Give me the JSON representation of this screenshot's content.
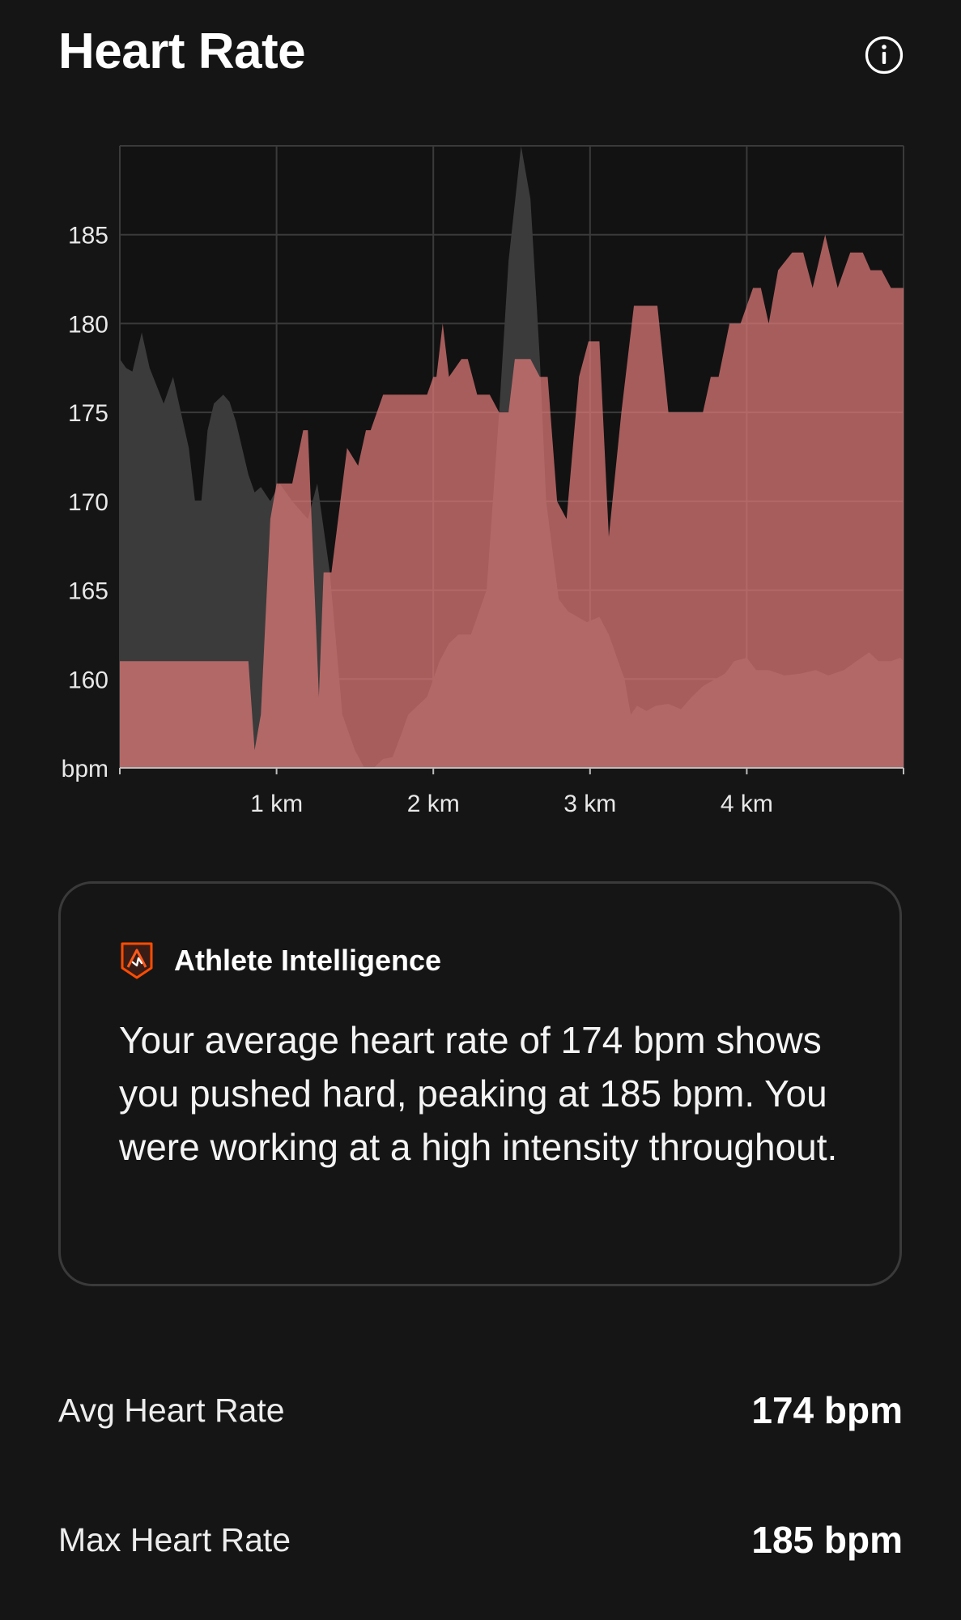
{
  "header": {
    "title": "Heart Rate",
    "info_icon": "info-circle-icon"
  },
  "chart_data": {
    "type": "area",
    "title": "",
    "xlabel": "",
    "ylabel": "bpm",
    "x_ticks": [
      "1 km",
      "2 km",
      "3 km",
      "4 km"
    ],
    "x_tick_values": [
      1,
      2,
      3,
      4
    ],
    "y_ticks": [
      160,
      165,
      170,
      175,
      180,
      185
    ],
    "xlim": [
      0,
      5
    ],
    "ylim": [
      155,
      190
    ],
    "grid": true,
    "colors": {
      "heart_rate": "#e07a78",
      "secondary": "#3b3b3b"
    },
    "series": [
      {
        "x": [
          0,
          0.82,
          0.86,
          0.9,
          0.96,
          1.0,
          1.1,
          1.17,
          1.2,
          1.27,
          1.3,
          1.35,
          1.45,
          1.52,
          1.57,
          1.6,
          1.68,
          1.75,
          1.8,
          1.96,
          2.0,
          2.02,
          2.06,
          2.1,
          2.18,
          2.22,
          2.28,
          2.36,
          2.42,
          2.48,
          2.52,
          2.62,
          2.68,
          2.73,
          2.79,
          2.85,
          2.93,
          2.99,
          3.06,
          3.12,
          3.2,
          3.28,
          3.34,
          3.43,
          3.5,
          3.55,
          3.72,
          3.77,
          3.82,
          3.89,
          3.96,
          4.04,
          4.09,
          4.14,
          4.2,
          4.29,
          4.36,
          4.42,
          4.5,
          4.58,
          4.66,
          4.74,
          4.79,
          4.86,
          4.92,
          4.96,
          5.0
        ],
        "values": [
          161,
          161,
          156,
          158,
          169,
          171,
          171,
          174,
          174,
          159,
          166,
          166,
          173,
          172,
          174,
          174,
          176,
          176,
          176,
          176,
          177,
          177,
          180,
          177,
          178,
          178,
          176,
          176,
          175,
          175,
          178,
          178,
          177,
          177,
          170,
          169,
          177,
          179,
          179,
          168,
          175,
          181,
          181,
          181,
          175,
          175,
          175,
          177,
          177,
          180,
          180,
          182,
          182,
          180,
          183,
          184,
          184,
          182,
          185,
          182,
          184,
          184,
          183,
          183,
          182,
          182,
          182
        ]
      },
      {
        "x": [
          0,
          0.04,
          0.08,
          0.14,
          0.19,
          0.28,
          0.34,
          0.39,
          0.44,
          0.48,
          0.52,
          0.56,
          0.6,
          0.66,
          0.7,
          0.74,
          0.82,
          0.86,
          0.9,
          0.96,
          1.02,
          1.1,
          1.2,
          1.26,
          1.34,
          1.42,
          1.5,
          1.56,
          1.62,
          1.68,
          1.74,
          1.8,
          1.84,
          1.9,
          1.96,
          2.0,
          2.04,
          2.1,
          2.16,
          2.24,
          2.34,
          2.42,
          2.48,
          2.56,
          2.62,
          2.68,
          2.72,
          2.8,
          2.86,
          2.92,
          2.98,
          3.06,
          3.12,
          3.22,
          3.26,
          3.3,
          3.36,
          3.42,
          3.5,
          3.58,
          3.65,
          3.72,
          3.8,
          3.86,
          3.92,
          4.0,
          4.06,
          4.14,
          4.24,
          4.34,
          4.44,
          4.52,
          4.62,
          4.7,
          4.78,
          4.84,
          4.92,
          4.98,
          5.0
        ],
        "values": [
          178,
          177.5,
          177.3,
          179.5,
          177.5,
          175.5,
          177,
          175,
          173,
          170,
          170,
          174,
          175.5,
          176,
          175.6,
          174.5,
          171.5,
          170.5,
          170.8,
          170,
          171,
          170,
          169,
          171,
          166,
          158,
          156,
          155,
          155,
          155.5,
          155.6,
          157,
          158,
          158.5,
          159,
          160,
          161,
          162,
          162.5,
          162.5,
          165,
          175,
          183.5,
          190,
          187,
          178,
          170,
          164.5,
          163.8,
          163.5,
          163.2,
          163.5,
          162.5,
          160,
          158,
          158.5,
          158.2,
          158.5,
          158.6,
          158.3,
          159,
          159.6,
          160,
          160.3,
          161,
          161.2,
          160.5,
          160.5,
          160.2,
          160.3,
          160.5,
          160.2,
          160.5,
          161,
          161.5,
          161,
          161,
          161.2,
          161
        ]
      }
    ]
  },
  "insight": {
    "icon": "athlete-intelligence-icon",
    "heading": "Athlete Intelligence",
    "body": "Your average heart rate of 174 bpm shows you pushed hard, peaking at 185 bpm. You were working at a high intensity throughout."
  },
  "stats": [
    {
      "label": "Avg Heart Rate",
      "value": "174 bpm"
    },
    {
      "label": "Max Heart Rate",
      "value": "185 bpm"
    }
  ]
}
